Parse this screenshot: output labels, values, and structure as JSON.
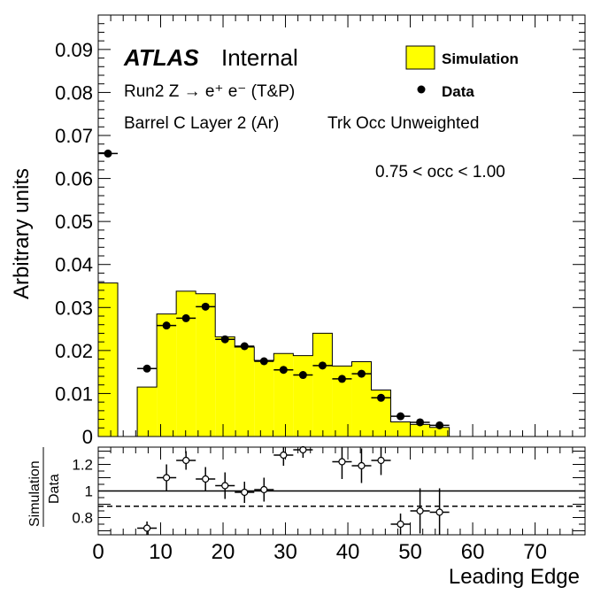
{
  "chart_data": [
    {
      "type": "bar",
      "panel": "main",
      "xlabel": "Leading Edge",
      "ylabel": "Arbitrary units",
      "xlim": [
        0,
        78
      ],
      "ylim": [
        0,
        0.098
      ],
      "y_ticks": [
        {
          "v": 0,
          "label": "0"
        },
        {
          "v": 0.01,
          "label": "0.01"
        },
        {
          "v": 0.02,
          "label": "0.02"
        },
        {
          "v": 0.03,
          "label": "0.03"
        },
        {
          "v": 0.04,
          "label": "0.04"
        },
        {
          "v": 0.05,
          "label": "0.05"
        },
        {
          "v": 0.06,
          "label": "0.06"
        },
        {
          "v": 0.07,
          "label": "0.07"
        },
        {
          "v": 0.08,
          "label": "0.08"
        },
        {
          "v": 0.09,
          "label": "0.09"
        }
      ],
      "legend": [
        {
          "label": "Simulation",
          "kind": "fill",
          "color": "#ffff00"
        },
        {
          "label": "Data",
          "kind": "marker",
          "color": "#000000"
        }
      ],
      "texts": {
        "atlas": "ATLAS",
        "internal": "Internal",
        "line1": "Run2 Z → e⁺ e⁻ (T&P)",
        "line2a": "Barrel C Layer 2 (Ar)",
        "line2b": "Trk Occ Unweighted",
        "range": "0.75 < occ < 1.00"
      },
      "simulation_hist": [
        {
          "x0": 0.0,
          "x1": 3.125,
          "y": 0.0357
        },
        {
          "x0": 3.125,
          "x1": 6.25,
          "y": 0.0
        },
        {
          "x0": 6.25,
          "x1": 9.375,
          "y": 0.0115
        },
        {
          "x0": 9.375,
          "x1": 12.5,
          "y": 0.0285
        },
        {
          "x0": 12.5,
          "x1": 15.625,
          "y": 0.0338
        },
        {
          "x0": 15.625,
          "x1": 18.75,
          "y": 0.0332
        },
        {
          "x0": 18.75,
          "x1": 21.875,
          "y": 0.0232
        },
        {
          "x0": 21.875,
          "x1": 25.0,
          "y": 0.0208
        },
        {
          "x0": 25.0,
          "x1": 28.125,
          "y": 0.0177
        },
        {
          "x0": 28.125,
          "x1": 31.25,
          "y": 0.0193
        },
        {
          "x0": 31.25,
          "x1": 34.375,
          "y": 0.0188
        },
        {
          "x0": 34.375,
          "x1": 37.5,
          "y": 0.024
        },
        {
          "x0": 37.5,
          "x1": 40.625,
          "y": 0.0164
        },
        {
          "x0": 40.625,
          "x1": 43.75,
          "y": 0.0174
        },
        {
          "x0": 43.75,
          "x1": 46.875,
          "y": 0.0108
        },
        {
          "x0": 46.875,
          "x1": 50.0,
          "y": 0.0034
        },
        {
          "x0": 50.0,
          "x1": 53.125,
          "y": 0.0028
        },
        {
          "x0": 53.125,
          "x1": 56.25,
          "y": 0.0021
        }
      ],
      "data_points": [
        {
          "x": 1.5625,
          "y": 0.0658,
          "yerr": 0.0008
        },
        {
          "x": 7.8125,
          "y": 0.0158,
          "yerr": 0.0004
        },
        {
          "x": 10.9375,
          "y": 0.0258,
          "yerr": 0.0005
        },
        {
          "x": 14.0625,
          "y": 0.0275,
          "yerr": 0.0005
        },
        {
          "x": 17.1875,
          "y": 0.0302,
          "yerr": 0.0005
        },
        {
          "x": 20.3125,
          "y": 0.0226,
          "yerr": 0.0004
        },
        {
          "x": 23.4375,
          "y": 0.021,
          "yerr": 0.0004
        },
        {
          "x": 26.5625,
          "y": 0.0175,
          "yerr": 0.0004
        },
        {
          "x": 29.6875,
          "y": 0.0155,
          "yerr": 0.0004
        },
        {
          "x": 32.8125,
          "y": 0.0143,
          "yerr": 0.0004
        },
        {
          "x": 35.9375,
          "y": 0.0165,
          "yerr": 0.0004
        },
        {
          "x": 39.0625,
          "y": 0.0134,
          "yerr": 0.0004
        },
        {
          "x": 42.1875,
          "y": 0.0146,
          "yerr": 0.0004
        },
        {
          "x": 45.3125,
          "y": 0.009,
          "yerr": 0.0003
        },
        {
          "x": 48.4375,
          "y": 0.0047,
          "yerr": 0.0002
        },
        {
          "x": 51.5625,
          "y": 0.0033,
          "yerr": 0.0002
        },
        {
          "x": 54.6875,
          "y": 0.0026,
          "yerr": 0.0002
        }
      ]
    },
    {
      "type": "scatter",
      "panel": "ratio",
      "xlabel": "Leading Edge",
      "ylabel_num": "Simulation",
      "ylabel_den": "Data",
      "xlim": [
        0,
        78
      ],
      "ylim": [
        0.67,
        1.33
      ],
      "x_ticks": [
        {
          "v": 0,
          "label": "0"
        },
        {
          "v": 10,
          "label": "10"
        },
        {
          "v": 20,
          "label": "20"
        },
        {
          "v": 30,
          "label": "30"
        },
        {
          "v": 40,
          "label": "40"
        },
        {
          "v": 50,
          "label": "50"
        },
        {
          "v": 60,
          "label": "60"
        },
        {
          "v": 70,
          "label": "70"
        }
      ],
      "y_ticks": [
        {
          "v": 0.8,
          "label": "0.8"
        },
        {
          "v": 1.0,
          "label": "1"
        },
        {
          "v": 1.2,
          "label": "1.2"
        }
      ],
      "reference_line": 1.0,
      "dashed_line": 0.885,
      "points": [
        {
          "x": 7.8125,
          "y": 0.72,
          "yerr": 0.05
        },
        {
          "x": 10.9375,
          "y": 1.1,
          "yerr": 0.1
        },
        {
          "x": 14.0625,
          "y": 1.23,
          "yerr": 0.07
        },
        {
          "x": 17.1875,
          "y": 1.09,
          "yerr": 0.09
        },
        {
          "x": 20.3125,
          "y": 1.04,
          "yerr": 0.1
        },
        {
          "x": 23.4375,
          "y": 0.99,
          "yerr": 0.08
        },
        {
          "x": 26.5625,
          "y": 1.01,
          "yerr": 0.09
        },
        {
          "x": 29.6875,
          "y": 1.27,
          "yerr": 0.08
        },
        {
          "x": 32.8125,
          "y": 1.31,
          "yerr": 0.06
        },
        {
          "x": 39.0625,
          "y": 1.22,
          "yerr": 0.13
        },
        {
          "x": 42.1875,
          "y": 1.19,
          "yerr": 0.13
        },
        {
          "x": 45.3125,
          "y": 1.23,
          "yerr": 0.11
        },
        {
          "x": 48.4375,
          "y": 0.75,
          "yerr": 0.08
        },
        {
          "x": 51.5625,
          "y": 0.85,
          "yerr": 0.17
        },
        {
          "x": 54.6875,
          "y": 0.84,
          "yerr": 0.18
        }
      ]
    }
  ]
}
